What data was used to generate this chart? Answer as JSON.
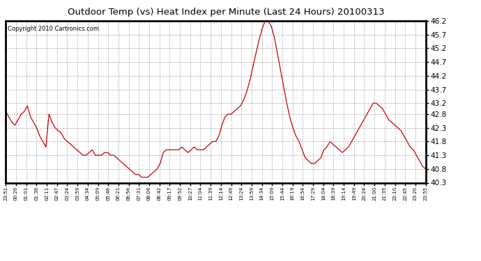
{
  "title": "Outdoor Temp (vs) Heat Index per Minute (Last 24 Hours) 20100313",
  "copyright": "Copyright 2010 Cartronics.com",
  "line_color": "#cc0000",
  "background_color": "#ffffff",
  "ylim": [
    40.3,
    46.2
  ],
  "yticks": [
    40.3,
    40.8,
    41.3,
    41.8,
    42.3,
    42.8,
    43.2,
    43.7,
    44.2,
    44.7,
    45.2,
    45.7,
    46.2
  ],
  "grid_color": "#aaaaaa",
  "x_labels": [
    "23:51",
    "00:26",
    "01:01",
    "01:36",
    "02:11",
    "02:47",
    "03:24",
    "03:59",
    "04:34",
    "05:09",
    "05:46",
    "06:21",
    "06:56",
    "07:31",
    "08:06",
    "08:42",
    "09:17",
    "09:52",
    "10:27",
    "11:04",
    "11:39",
    "12:14",
    "12:49",
    "13:24",
    "13:59",
    "14:34",
    "15:09",
    "15:44",
    "16:19",
    "16:54",
    "17:29",
    "18:04",
    "18:39",
    "19:14",
    "19:49",
    "20:24",
    "21:00",
    "21:35",
    "22:10",
    "22:45",
    "23:20",
    "23:55"
  ],
  "y_values": [
    42.9,
    42.7,
    42.5,
    42.4,
    42.6,
    42.8,
    42.9,
    43.1,
    42.7,
    42.5,
    42.3,
    42.0,
    41.8,
    41.6,
    42.8,
    42.5,
    42.3,
    42.2,
    42.1,
    41.9,
    41.8,
    41.7,
    41.6,
    41.5,
    41.4,
    41.3,
    41.3,
    41.4,
    41.5,
    41.3,
    41.3,
    41.3,
    41.4,
    41.4,
    41.3,
    41.3,
    41.2,
    41.1,
    41.0,
    40.9,
    40.8,
    40.7,
    40.6,
    40.6,
    40.5,
    40.5,
    40.5,
    40.6,
    40.7,
    40.8,
    41.0,
    41.4,
    41.5,
    41.5,
    41.5,
    41.5,
    41.5,
    41.6,
    41.5,
    41.4,
    41.5,
    41.6,
    41.5,
    41.5,
    41.5,
    41.6,
    41.7,
    41.8,
    41.8,
    42.0,
    42.4,
    42.7,
    42.8,
    42.8,
    42.9,
    43.0,
    43.1,
    43.3,
    43.6,
    44.0,
    44.5,
    45.0,
    45.5,
    45.9,
    46.2,
    46.2,
    46.0,
    45.6,
    45.0,
    44.4,
    43.8,
    43.2,
    42.7,
    42.3,
    42.0,
    41.8,
    41.5,
    41.2,
    41.1,
    41.0,
    41.0,
    41.1,
    41.2,
    41.5,
    41.6,
    41.8,
    41.7,
    41.6,
    41.5,
    41.4,
    41.5,
    41.6,
    41.8,
    42.0,
    42.2,
    42.4,
    42.6,
    42.8,
    43.0,
    43.2,
    43.2,
    43.1,
    43.0,
    42.8,
    42.6,
    42.5,
    42.4,
    42.3,
    42.2,
    42.0,
    41.8,
    41.6,
    41.5,
    41.3,
    41.1,
    40.9,
    40.8
  ]
}
